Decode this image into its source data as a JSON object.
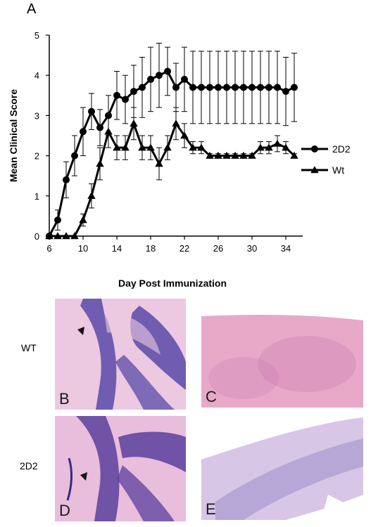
{
  "figure": {
    "panel_a_label": "A",
    "row_labels": {
      "wt": "WT",
      "2d2": "2D2"
    },
    "micrographs": [
      {
        "letter": "B",
        "stain_colors": [
          "#ecc9e0",
          "#5a4aa8"
        ]
      },
      {
        "letter": "C",
        "stain_colors": [
          "#e8a9c9",
          "#c06aa8"
        ]
      },
      {
        "letter": "D",
        "stain_colors": [
          "#e9bddc",
          "#5b3f9e"
        ]
      },
      {
        "letter": "E",
        "stain_colors": [
          "#d8c6e6",
          "#7a6cb8"
        ]
      }
    ]
  },
  "chart_data": {
    "type": "line",
    "title": "",
    "xlabel": "Day Post Immunization",
    "ylabel": "Mean Clinical Score",
    "xlim": [
      6,
      36
    ],
    "ylim": [
      0,
      5
    ],
    "xticks": [
      6,
      10,
      14,
      18,
      22,
      26,
      30,
      34
    ],
    "yticks": [
      0,
      1,
      2,
      3,
      4,
      5
    ],
    "grid": false,
    "legend_position": "right",
    "series": [
      {
        "name": "2D2",
        "marker": "circle",
        "color": "#000000",
        "x": [
          6,
          7,
          8,
          9,
          10,
          11,
          12,
          13,
          14,
          15,
          16,
          17,
          18,
          19,
          20,
          21,
          22,
          23,
          24,
          25,
          26,
          27,
          28,
          29,
          30,
          31,
          32,
          33,
          34,
          35
        ],
        "y": [
          0,
          0.4,
          1.4,
          2.0,
          2.6,
          3.1,
          2.7,
          3.0,
          3.5,
          3.4,
          3.6,
          3.7,
          3.9,
          4.0,
          4.1,
          3.7,
          3.9,
          3.7,
          3.7,
          3.7,
          3.7,
          3.7,
          3.7,
          3.7,
          3.7,
          3.7,
          3.7,
          3.7,
          3.6,
          3.7
        ],
        "err": [
          0,
          0.25,
          0.45,
          0.5,
          0.6,
          0.45,
          0.45,
          0.5,
          0.6,
          0.6,
          0.65,
          0.75,
          0.8,
          0.8,
          0.6,
          0.6,
          0.8,
          0.9,
          0.9,
          0.9,
          0.9,
          0.9,
          0.9,
          0.9,
          0.9,
          0.9,
          0.9,
          0.9,
          0.85,
          0.85
        ]
      },
      {
        "name": "Wt",
        "marker": "triangle",
        "color": "#000000",
        "x": [
          6,
          7,
          8,
          9,
          10,
          11,
          12,
          13,
          14,
          15,
          16,
          17,
          18,
          19,
          20,
          21,
          22,
          23,
          24,
          25,
          26,
          27,
          28,
          29,
          30,
          31,
          32,
          33,
          34,
          35
        ],
        "y": [
          0,
          0,
          0,
          0,
          0.4,
          1.0,
          1.8,
          2.6,
          2.2,
          2.2,
          2.8,
          2.2,
          2.2,
          1.8,
          2.2,
          2.8,
          2.5,
          2.2,
          2.2,
          2.0,
          2.0,
          2.0,
          2.0,
          2.0,
          2.0,
          2.2,
          2.2,
          2.3,
          2.2,
          2.0
        ],
        "err": [
          0,
          0,
          0,
          0,
          0.15,
          0.3,
          0.4,
          0.4,
          0.3,
          0.3,
          0.4,
          0.3,
          0.3,
          0.4,
          0.3,
          0.4,
          0.3,
          0.15,
          0.15,
          0.05,
          0.05,
          0.05,
          0.05,
          0.05,
          0.05,
          0.15,
          0.15,
          0.2,
          0.15,
          0.05
        ]
      }
    ]
  }
}
